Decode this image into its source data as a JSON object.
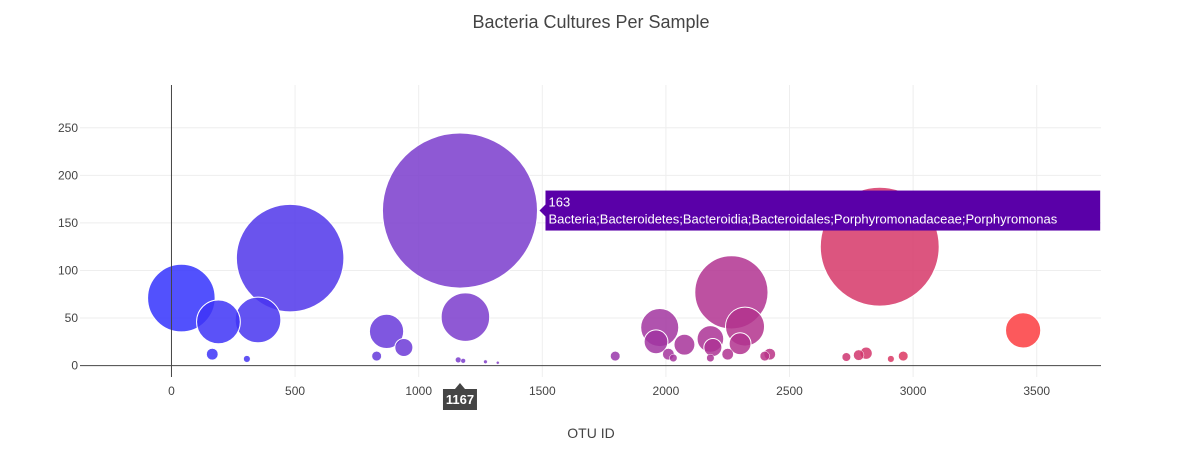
{
  "chart_data": {
    "type": "scatter",
    "title": "Bacteria Cultures Per Sample",
    "xlabel": "OTU ID",
    "ylabel": "",
    "xlim": [
      -370,
      3760
    ],
    "ylim": [
      -12,
      295
    ],
    "xticks": [
      0,
      500,
      1000,
      1500,
      2000,
      2500,
      3000,
      3500
    ],
    "yticks": [
      0,
      50,
      100,
      150,
      200,
      250
    ],
    "marker_size_equals_value": true,
    "colorscale": [
      "#3232ff",
      "#7a3ccd",
      "#b4328c",
      "#ff3c3c"
    ],
    "points": [
      {
        "x": 40,
        "y": 71
      },
      {
        "x": 190,
        "y": 46
      },
      {
        "x": 350,
        "y": 48
      },
      {
        "x": 480,
        "y": 113
      },
      {
        "x": 165,
        "y": 12
      },
      {
        "x": 305,
        "y": 7
      },
      {
        "x": 870,
        "y": 36
      },
      {
        "x": 940,
        "y": 19
      },
      {
        "x": 830,
        "y": 10
      },
      {
        "x": 1167,
        "y": 163
      },
      {
        "x": 1189,
        "y": 51
      },
      {
        "x": 1160,
        "y": 6
      },
      {
        "x": 1180,
        "y": 5
      },
      {
        "x": 1270,
        "y": 4
      },
      {
        "x": 1320,
        "y": 3
      },
      {
        "x": 1795,
        "y": 10
      },
      {
        "x": 1975,
        "y": 40
      },
      {
        "x": 1960,
        "y": 25
      },
      {
        "x": 2075,
        "y": 22
      },
      {
        "x": 2010,
        "y": 12
      },
      {
        "x": 2030,
        "y": 8
      },
      {
        "x": 2265,
        "y": 77
      },
      {
        "x": 2320,
        "y": 41
      },
      {
        "x": 2300,
        "y": 23
      },
      {
        "x": 2180,
        "y": 28
      },
      {
        "x": 2190,
        "y": 19
      },
      {
        "x": 2250,
        "y": 12
      },
      {
        "x": 2180,
        "y": 8
      },
      {
        "x": 2420,
        "y": 12
      },
      {
        "x": 2400,
        "y": 10
      },
      {
        "x": 2865,
        "y": 125
      },
      {
        "x": 2810,
        "y": 13
      },
      {
        "x": 2780,
        "y": 11
      },
      {
        "x": 2730,
        "y": 9
      },
      {
        "x": 2960,
        "y": 10
      },
      {
        "x": 2910,
        "y": 7
      },
      {
        "x": 3445,
        "y": 37
      }
    ],
    "tooltip": {
      "value": "163",
      "label": "Bacteria;Bacteroidetes;Bacteroidia;Bacteroidales;Porphyromonadaceae;Porphyromonas",
      "bg": "#5a00a8"
    },
    "hover_x_label": "1167"
  }
}
